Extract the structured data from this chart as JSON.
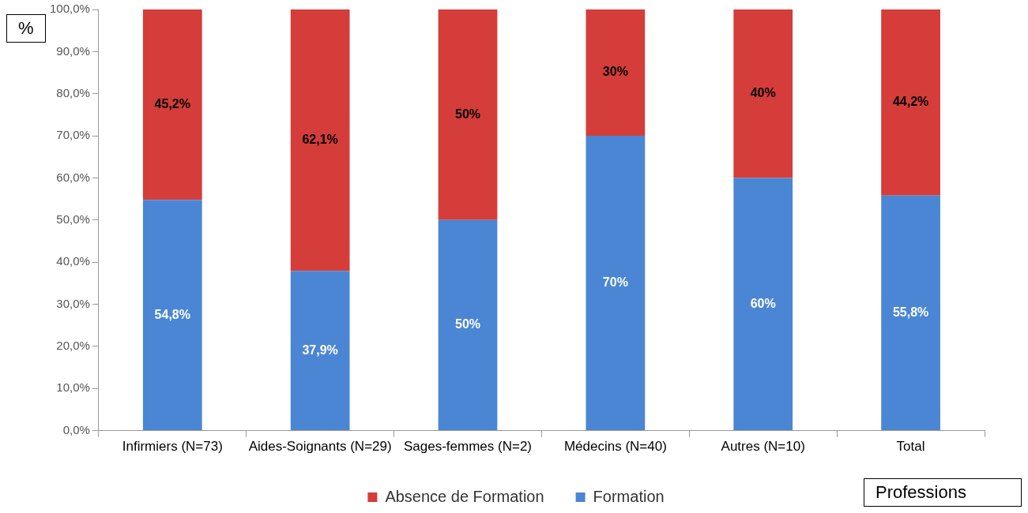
{
  "chart_data": {
    "type": "bar",
    "stacked": true,
    "ylabel": "%",
    "xlabel": "Professions",
    "categories": [
      "Infirmiers (N=73)",
      "Aides-Soignants (N=29)",
      "Sages-femmes (N=2)",
      "Médecins (N=40)",
      "Autres (N=10)",
      "Total"
    ],
    "series": [
      {
        "name": "Formation",
        "color": "#4a86d4",
        "values": [
          54.8,
          37.9,
          50,
          70,
          60,
          55.8
        ],
        "value_labels": [
          "54,8%",
          "37,9%",
          "50%",
          "70%",
          "60%",
          "55,8%"
        ]
      },
      {
        "name": "Absence de Formation",
        "color": "#d43d3a",
        "values": [
          45.2,
          62.1,
          50,
          30,
          40,
          44.2
        ],
        "value_labels": [
          "45,2%",
          "62,1%",
          "50%",
          "30%",
          "40%",
          "44,2%"
        ]
      }
    ],
    "ylim": [
      0,
      100
    ],
    "yticks": [
      {
        "value": 0,
        "label": "0,0%"
      },
      {
        "value": 10,
        "label": "10,0%"
      },
      {
        "value": 20,
        "label": "20,0%"
      },
      {
        "value": 30,
        "label": "30,0%"
      },
      {
        "value": 40,
        "label": "40,0%"
      },
      {
        "value": 50,
        "label": "50,0%"
      },
      {
        "value": 60,
        "label": "60,0%"
      },
      {
        "value": 70,
        "label": "70,0%"
      },
      {
        "value": 80,
        "label": "80,0%"
      },
      {
        "value": 90,
        "label": "90,0%"
      },
      {
        "value": 100,
        "label": "100,0%"
      }
    ],
    "grid": false,
    "legend": "bottom"
  }
}
